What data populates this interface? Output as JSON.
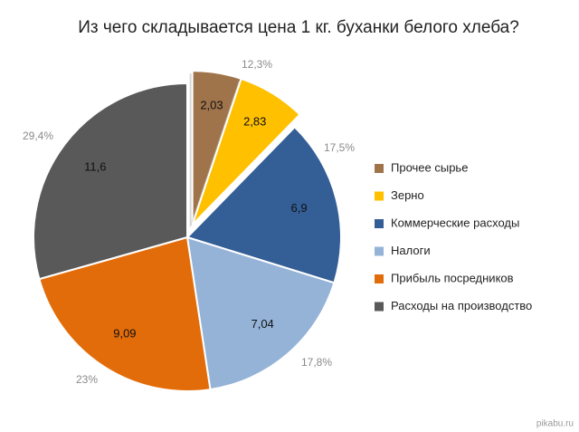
{
  "chart_data": {
    "type": "pie",
    "title": "Из чего складывается цена 1 кг. буханки белого хлеба?",
    "categories": [
      "Прочее сырье",
      "Зерно",
      "Коммерческие расходы",
      "Налоги",
      "Прибыль посредников",
      "Расходы на производство"
    ],
    "values": [
      2.03,
      2.83,
      6.9,
      7.04,
      9.09,
      11.6
    ],
    "value_labels": [
      "2,03",
      "2,83",
      "6,9",
      "7,04",
      "9,09",
      "11,6"
    ],
    "colors": [
      "#a0744b",
      "#ffc000",
      "#345e96",
      "#95b3d7",
      "#e36c0a",
      "#595959"
    ],
    "exploded": [
      true,
      true,
      false,
      false,
      false,
      false
    ],
    "annotations": [
      "12,3%",
      "17,5%",
      "17,8%",
      "23%",
      "29,4%"
    ],
    "legend": "right",
    "watermark": "pikabu.ru"
  }
}
